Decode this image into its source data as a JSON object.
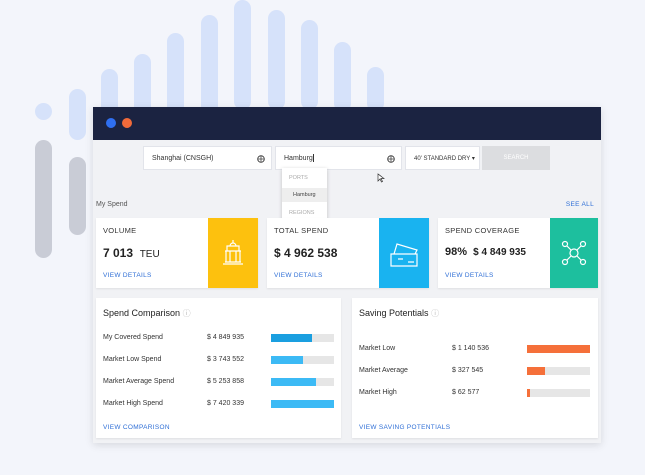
{
  "search": {
    "origin": "Shanghai (CNSGH)",
    "destination": "Hamburg",
    "container": "40' STANDARD DRY",
    "button": "SEARCH",
    "dropdown": [
      "PORTS",
      "Hamburg",
      "REGIONS"
    ]
  },
  "my_spend": {
    "title": "My Spend",
    "see_all": "SEE ALL",
    "cards": [
      {
        "label": "VOLUME",
        "value": "7 013",
        "unit": "TEU",
        "link": "VIEW DETAILS"
      },
      {
        "label": "TOTAL SPEND",
        "value": "$ 4 962 538",
        "link": "VIEW DETAILS"
      },
      {
        "label": "SPEND COVERAGE",
        "value": "98%",
        "extra": "$ 4 849 935",
        "link": "VIEW DETAILS"
      }
    ]
  },
  "spend_comparison": {
    "title": "Spend Comparison",
    "link": "VIEW COMPARISON",
    "rows": [
      {
        "label": "My Covered Spend",
        "value": "$ 4 849 935"
      },
      {
        "label": "Market Low Spend",
        "value": "$ 3 743 552"
      },
      {
        "label": "Market Average Spend",
        "value": "$ 5 253 858"
      },
      {
        "label": "Market High Spend",
        "value": "$ 7 420 339"
      }
    ]
  },
  "saving_potentials": {
    "title": "Saving Potentials",
    "link": "VIEW SAVING POTENTIALS",
    "rows": [
      {
        "label": "Market Low",
        "value": "$ 1 140 536"
      },
      {
        "label": "Market Average",
        "value": "$ 327 545"
      },
      {
        "label": "Market High",
        "value": "$ 62 577"
      }
    ]
  }
}
